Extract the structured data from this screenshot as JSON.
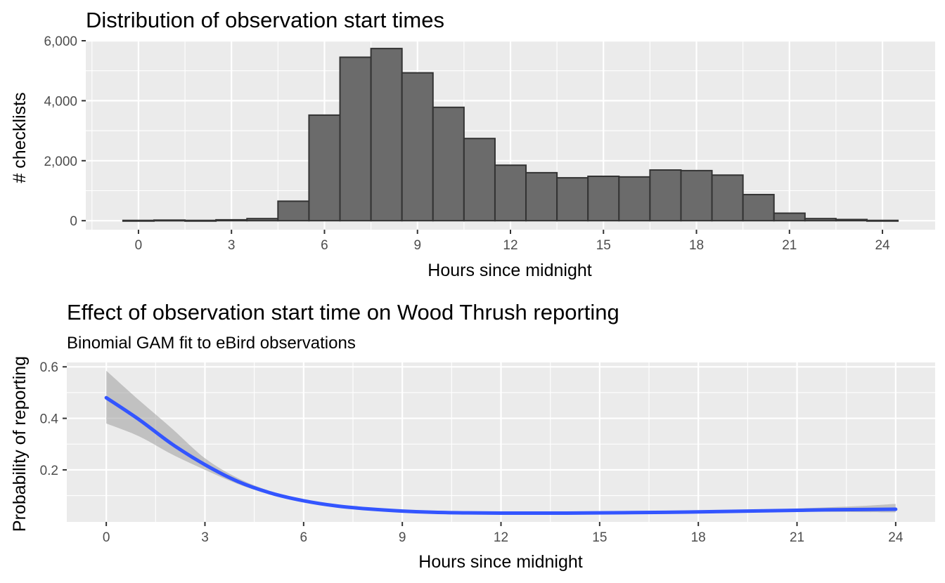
{
  "chart_data": [
    {
      "type": "bar",
      "title": "Distribution of observation start times",
      "xlabel": "Hours since midnight",
      "ylabel": "# checklists",
      "x_ticks": [
        0,
        3,
        6,
        9,
        12,
        15,
        18,
        21,
        24
      ],
      "y_ticks": [
        0,
        2000,
        4000,
        6000
      ],
      "y_tick_labels": [
        "0",
        "2,000",
        "4,000",
        "6,000"
      ],
      "xlim": [
        -1.7,
        25.7
      ],
      "ylim": [
        -300,
        6000
      ],
      "grid": true,
      "colors": {
        "bar_fill": "#6b6b6b",
        "bar_outline": "#333333",
        "panel": "#ebebeb"
      },
      "bin_centers": [
        0,
        1,
        2,
        3,
        4,
        5,
        6,
        7,
        8,
        9,
        10,
        11,
        12,
        13,
        14,
        15,
        16,
        17,
        18,
        19,
        20,
        21,
        22,
        23,
        24
      ],
      "bin_width": 1,
      "values": [
        10,
        20,
        10,
        30,
        70,
        650,
        3520,
        5450,
        5740,
        4930,
        3780,
        2740,
        1850,
        1600,
        1430,
        1480,
        1460,
        1690,
        1670,
        1520,
        870,
        250,
        70,
        40,
        10
      ]
    },
    {
      "type": "line",
      "title": "Effect of observation start time on Wood Thrush reporting",
      "subtitle": "Binomial GAM fit to eBird observations",
      "xlabel": "Hours since midnight",
      "ylabel": "Probability of reporting",
      "x_ticks": [
        0,
        3,
        6,
        9,
        12,
        15,
        18,
        21,
        24
      ],
      "y_ticks": [
        0.2,
        0.4,
        0.6
      ],
      "y_tick_labels": [
        "0.2",
        "0.4",
        "0.6"
      ],
      "xlim": [
        -1.2,
        25.2
      ],
      "ylim": [
        -0.002,
        0.617
      ],
      "grid": true,
      "colors": {
        "line": "#3355ff",
        "ribbon": "#9e9e9e",
        "panel": "#ebebeb"
      },
      "series": [
        {
          "x": [
            0,
            1,
            2,
            3,
            4,
            5,
            6,
            7,
            8,
            9,
            10,
            11,
            12,
            13,
            14,
            15,
            16,
            17,
            18,
            19,
            20,
            21,
            22,
            23,
            24
          ],
          "y": [
            0.48,
            0.395,
            0.3,
            0.22,
            0.155,
            0.11,
            0.08,
            0.06,
            0.048,
            0.04,
            0.035,
            0.033,
            0.032,
            0.032,
            0.032,
            0.033,
            0.034,
            0.035,
            0.037,
            0.039,
            0.041,
            0.043,
            0.045,
            0.046,
            0.047
          ],
          "lower": [
            0.38,
            0.33,
            0.26,
            0.2,
            0.145,
            0.104,
            0.076,
            0.058,
            0.046,
            0.039,
            0.034,
            0.032,
            0.031,
            0.031,
            0.031,
            0.032,
            0.033,
            0.034,
            0.035,
            0.036,
            0.037,
            0.037,
            0.037,
            0.036,
            0.035
          ],
          "upper": [
            0.585,
            0.47,
            0.36,
            0.245,
            0.168,
            0.117,
            0.085,
            0.063,
            0.05,
            0.042,
            0.036,
            0.034,
            0.033,
            0.033,
            0.033,
            0.034,
            0.035,
            0.037,
            0.039,
            0.042,
            0.045,
            0.05,
            0.055,
            0.06,
            0.068
          ]
        }
      ]
    }
  ]
}
